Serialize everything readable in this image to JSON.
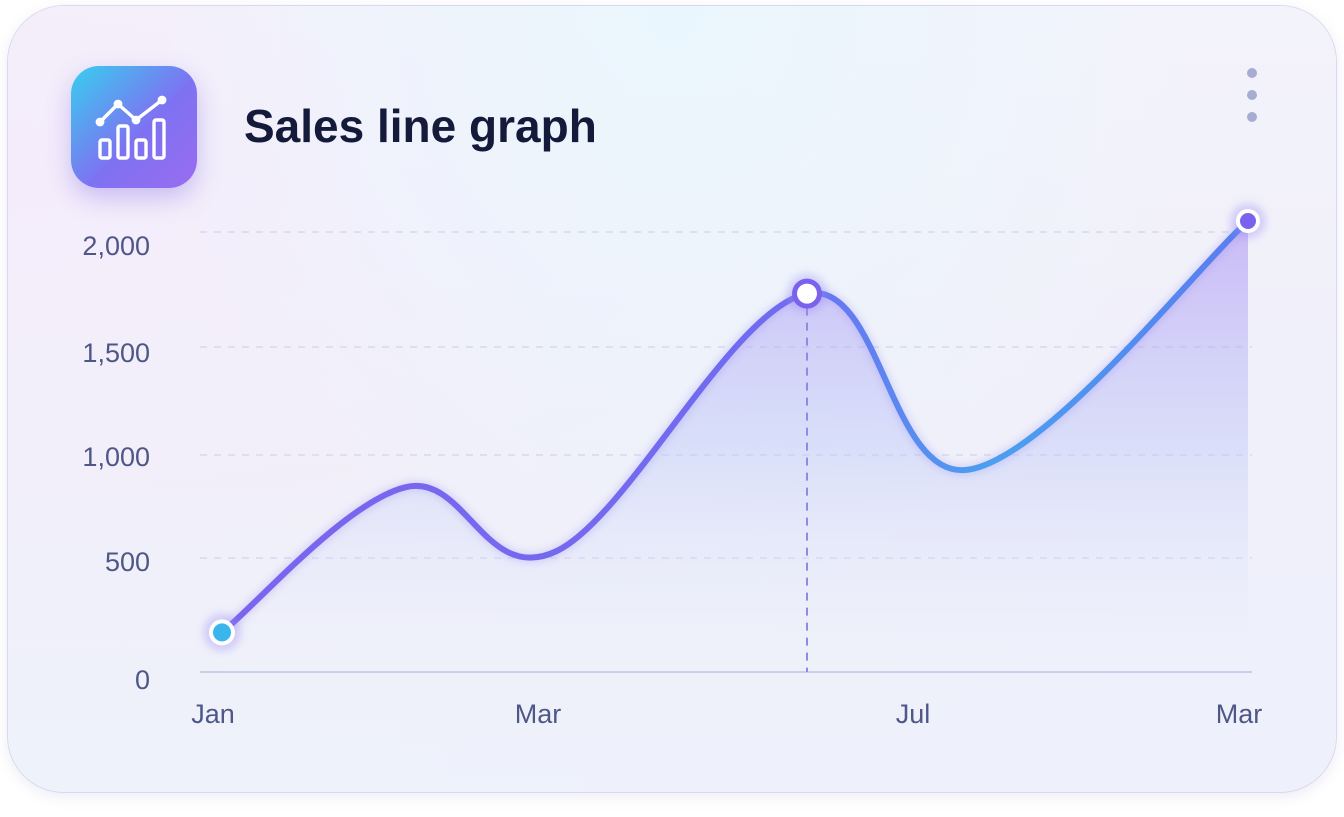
{
  "header": {
    "title": "Sales line graph",
    "app_icon": "line-chart-icon",
    "menu_icon": "more-vertical-icon"
  },
  "chart_data": {
    "type": "area",
    "title": "Sales line graph",
    "xlabel": "",
    "ylabel": "",
    "x_tick_labels": [
      "Jan",
      "Mar",
      "Jul",
      "Mar"
    ],
    "y_tick_labels": [
      "0",
      "500",
      "1,000",
      "1,500",
      "2,000"
    ],
    "yticks": [
      0,
      500,
      1000,
      1500,
      2000
    ],
    "ylim": [
      0,
      2000
    ],
    "grid": true,
    "legend": "none",
    "series": [
      {
        "x": [
          0,
          1.02,
          1.86,
          3.25,
          4.15,
          5.7
        ],
        "values": [
          180,
          840,
          550,
          1720,
          920,
          2050
        ]
      }
    ],
    "highlight_index": 3,
    "colors": {
      "line_start": "#7b62ee",
      "line_end": "#3ea8ef",
      "grid": "#d9dcf0",
      "text": "#4f5787"
    }
  }
}
